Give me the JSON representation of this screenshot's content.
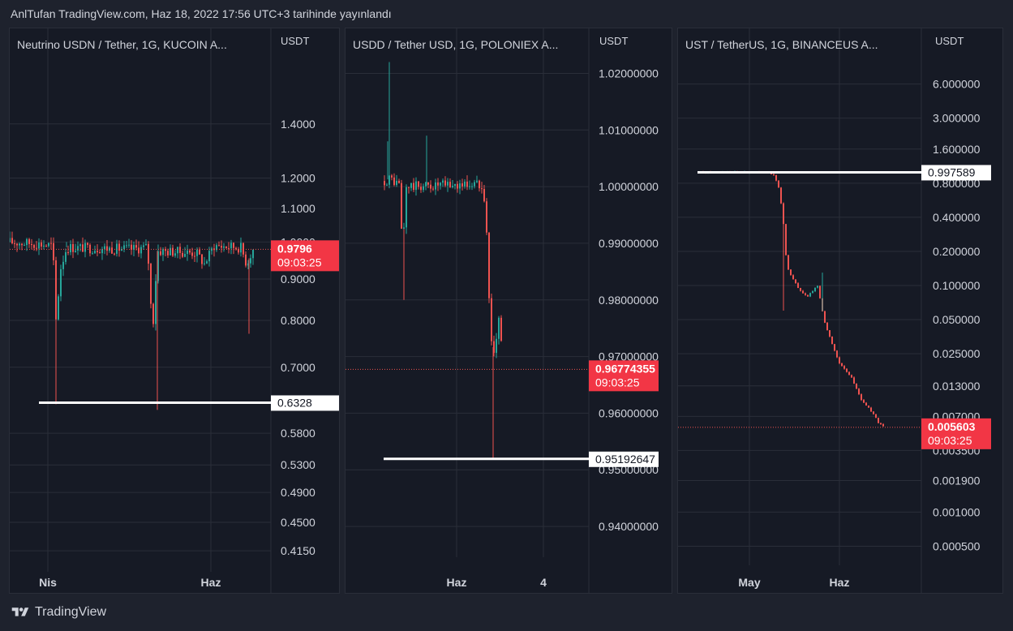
{
  "header": {
    "title": "AnlTufan TradingView.com, Haz 18, 2022 17:56 UTC+3 tarihinde yayınlandı"
  },
  "footer": {
    "brand": "TradingView",
    "logo_icon": "tradingview-logo-icon"
  },
  "colors": {
    "up": "#26a69a",
    "down": "#ef5350",
    "price_tag": "#f23645",
    "level": "#ffffff",
    "grid": "#2a2e39",
    "panel_bg": "#161a25"
  },
  "chart_data": [
    {
      "type": "candlestick",
      "title": "Neutrino USDN / Tether, 1G, KUCOIN  A...",
      "unit": "USDT",
      "scale": "log",
      "ylim": [
        0.4,
        1.6
      ],
      "y_ticks": [
        "1.4000",
        "1.2000",
        "1.1000",
        "1.0000",
        "0.9000",
        "0.8000",
        "0.7000",
        "0.5800",
        "0.5300",
        "0.4900",
        "0.4500",
        "0.4150"
      ],
      "x_ticks": [
        "Nis",
        "Haz"
      ],
      "last_price": "0.9796",
      "countdown": "09:03:25",
      "level_label": "0.6328",
      "level": 0.6328,
      "grid": true
    },
    {
      "type": "candlestick",
      "title": "USDD / Tether USD, 1G, POLONIEX  A...",
      "unit": "USDT",
      "scale": "linear",
      "ylim": [
        0.936,
        1.0225
      ],
      "y_ticks": [
        "1.02000000",
        "1.01000000",
        "1.00000000",
        "0.99000000",
        "0.98000000",
        "0.97000000",
        "0.96000000",
        "0.95000000",
        "0.94000000"
      ],
      "x_ticks": [
        "Haz",
        "4"
      ],
      "last_price": "0.96774355",
      "countdown": "09:03:25",
      "level_label": "0.95192647",
      "level": 0.95192647,
      "grid": true
    },
    {
      "type": "candlestick",
      "title": "UST / TetherUS, 1G, BINANCEUS  A...",
      "unit": "USDT",
      "scale": "log",
      "ylim": [
        0.0004,
        9
      ],
      "y_ticks": [
        "6.000000",
        "3.000000",
        "1.600000",
        "0.800000",
        "0.400000",
        "0.200000",
        "0.100000",
        "0.050000",
        "0.025000",
        "0.013000",
        "0.007000",
        "0.003500",
        "0.001900",
        "0.001000",
        "0.000500"
      ],
      "x_ticks": [
        "May",
        "Haz"
      ],
      "last_price": "0.005603",
      "countdown": "09:03:25",
      "level_label": "0.997589",
      "level": 0.997589,
      "grid": true
    }
  ]
}
